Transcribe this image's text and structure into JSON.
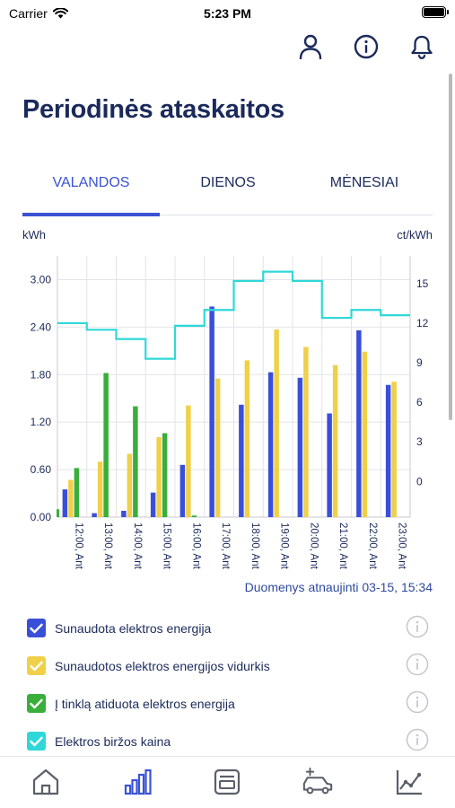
{
  "status_bar": {
    "carrier": "Carrier",
    "time": "5:23 PM"
  },
  "page": {
    "title": "Periodinės ataskaitos"
  },
  "tabs": [
    {
      "label": "VALANDOS",
      "active": true
    },
    {
      "label": "DIENOS",
      "active": false
    },
    {
      "label": "MĖNESIAI",
      "active": false
    }
  ],
  "chart": {
    "left_unit": "kWh",
    "right_unit": "ct/kWh",
    "updated_text": "Duomenys atnaujinti 03-15, 15:34"
  },
  "chart_data": {
    "type": "bar",
    "categories": [
      "12:00, Ant",
      "13:00, Ant",
      "14:00, Ant",
      "15:00, Ant",
      "16:00, Ant",
      "17:00, Ant",
      "18:00, Ant",
      "19:00, Ant",
      "20:00, Ant",
      "21:00, Ant",
      "22:00, Ant",
      "23:00, Ant"
    ],
    "series": [
      {
        "name": "Sunaudota elektros energija",
        "axis": "left",
        "color": "#3a4fd8",
        "values": [
          0.35,
          0.05,
          0.08,
          0.31,
          0.66,
          2.66,
          1.42,
          1.83,
          1.76,
          1.31,
          2.36,
          1.67
        ]
      },
      {
        "name": "Sunaudotos elektros energijos vidurkis",
        "axis": "left",
        "color": "#f0d049",
        "values": [
          0.47,
          0.7,
          0.8,
          1.01,
          1.41,
          1.75,
          1.98,
          2.37,
          2.15,
          1.92,
          2.09,
          1.71
        ]
      },
      {
        "name": "Į tinklą atiduota elektros energija",
        "axis": "left",
        "color": "#3aae3a",
        "values": [
          0.62,
          1.82,
          1.4,
          1.06,
          0.02,
          0,
          0,
          0,
          0,
          0,
          0,
          0
        ]
      },
      {
        "name": "Elektros biržos kaina",
        "axis": "right",
        "type": "step-line",
        "color": "#2fd8d8",
        "values": [
          12.0,
          11.5,
          10.8,
          9.3,
          11.8,
          13.0,
          15.2,
          15.9,
          15.2,
          12.4,
          13.0,
          12.6
        ]
      }
    ],
    "extra_bar_before_first": {
      "series": "Į tinklą atiduota elektros energija",
      "value": 0.1
    },
    "y_left": {
      "min": 0,
      "max": 3.3,
      "ticks": [
        "0.00",
        "0.60",
        "1.20",
        "1.80",
        "2.40",
        "3.00"
      ]
    },
    "y_right": {
      "min": -2.7,
      "max": 17.1,
      "ticks": [
        "0",
        "3",
        "6",
        "9",
        "12",
        "15"
      ]
    },
    "grid": true
  },
  "legend": [
    {
      "label": "Sunaudota elektros energija",
      "color": "#3a4fd8",
      "checked": true
    },
    {
      "label": "Sunaudotos elektros energijos vidurkis",
      "color": "#f0d049",
      "checked": true
    },
    {
      "label": "Į tinklą atiduota elektros energija",
      "color": "#3aae3a",
      "checked": true
    },
    {
      "label": "Elektros biržos kaina",
      "color": "#2fd8d8",
      "checked": true
    }
  ],
  "tab_bar": [
    {
      "icon": "home-icon",
      "active": false
    },
    {
      "icon": "bar-chart-icon",
      "active": true
    },
    {
      "icon": "invoice-icon",
      "active": false
    },
    {
      "icon": "ev-car-icon",
      "active": false
    },
    {
      "icon": "trend-icon",
      "active": false
    }
  ]
}
